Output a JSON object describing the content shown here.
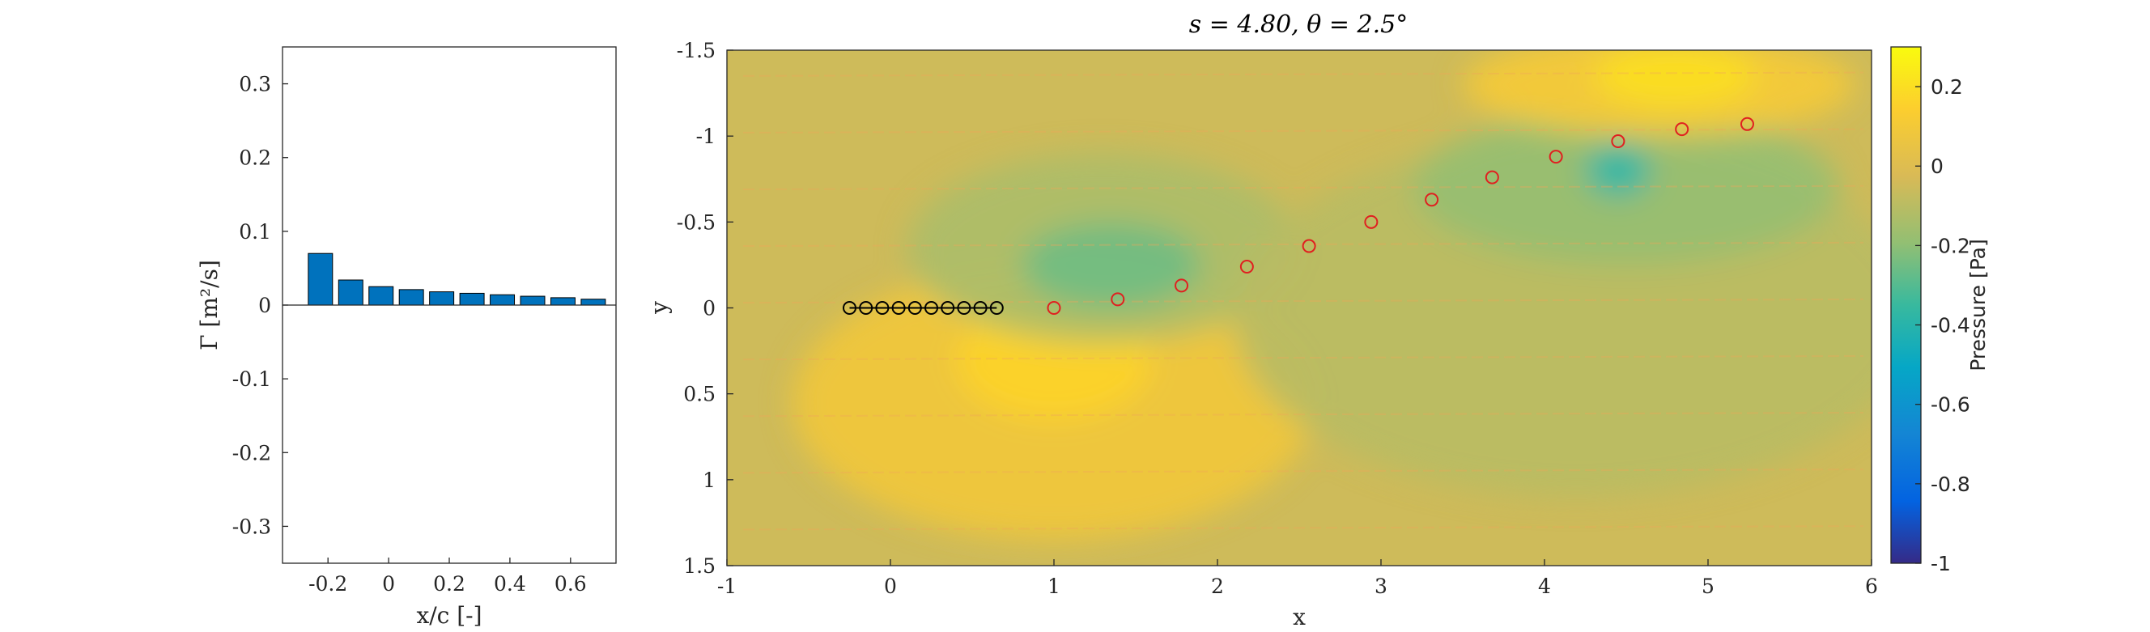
{
  "chart_data": [
    {
      "type": "bar",
      "xlabel": "x/c [-]",
      "ylabel": "Γ [m²/s]",
      "xlim": [
        -0.35,
        0.75
      ],
      "ylim": [
        -0.35,
        0.35
      ],
      "xticks": [
        -0.2,
        0,
        0.2,
        0.4,
        0.6
      ],
      "xtick_labels": [
        "-0.2",
        "0",
        "0.2",
        "0.4",
        "0.6"
      ],
      "yticks": [
        0.3,
        0.2,
        0.1,
        0,
        -0.1,
        -0.2,
        -0.3
      ],
      "ytick_labels": [
        "0.3",
        "0.2",
        "0.1",
        "0",
        "-0.1",
        "-0.2",
        "-0.3"
      ],
      "x": [
        -0.225,
        -0.125,
        -0.025,
        0.075,
        0.175,
        0.275,
        0.375,
        0.475,
        0.575,
        0.675
      ],
      "values": [
        0.07,
        0.034,
        0.025,
        0.021,
        0.018,
        0.016,
        0.014,
        0.012,
        0.01,
        0.008
      ],
      "bar_color": "#0072BD"
    },
    {
      "type": "heatmap",
      "title": "s = 4.80, θ = 2.5°",
      "xlabel": "x",
      "ylabel": "y",
      "xlim": [
        -1,
        6
      ],
      "ylim": [
        -1.5,
        1.5
      ],
      "y_reversed": true,
      "xticks": [
        -1,
        0,
        1,
        2,
        3,
        4,
        5,
        6
      ],
      "xtick_labels": [
        "-1",
        "0",
        "1",
        "2",
        "3",
        "4",
        "5",
        "6"
      ],
      "yticks": [
        -1.5,
        -1,
        -0.5,
        0,
        0.5,
        1,
        1.5
      ],
      "ytick_labels": [
        "-1.5",
        "-1",
        "-0.5",
        "0",
        "0.5",
        "1",
        "1.5"
      ],
      "colorbar": {
        "label": "Pressure [Pa]",
        "range": [
          -1,
          0.3
        ],
        "ticks": [
          0.2,
          0,
          -0.2,
          -0.4,
          -0.6,
          -0.8,
          -1
        ],
        "tick_labels": [
          "0.2",
          "0",
          "-0.2",
          "-0.4",
          "-0.6",
          "-0.8",
          "-1"
        ],
        "colormap": "parula"
      },
      "background_level": -0.05,
      "regions": [
        {
          "cx": 1.0,
          "cy": 0.55,
          "rx": 1.6,
          "ry": 0.8,
          "level": 0.08
        },
        {
          "cx": 1.0,
          "cy": 0.3,
          "rx": 0.6,
          "ry": 0.35,
          "level": 0.16
        },
        {
          "cx": 1.3,
          "cy": -0.35,
          "rx": 1.2,
          "ry": 0.55,
          "level": -0.13
        },
        {
          "cx": 1.35,
          "cy": -0.25,
          "rx": 0.55,
          "ry": 0.25,
          "level": -0.25
        },
        {
          "cx": 4.2,
          "cy": 0.05,
          "rx": 2.1,
          "ry": 1.05,
          "level": -0.1
        },
        {
          "cx": 4.5,
          "cy": -0.7,
          "rx": 1.3,
          "ry": 0.45,
          "level": -0.18
        },
        {
          "cx": 4.45,
          "cy": -0.8,
          "rx": 0.2,
          "ry": 0.15,
          "level": -0.38
        },
        {
          "cx": 4.7,
          "cy": -1.3,
          "rx": 1.2,
          "ry": 0.3,
          "level": 0.1
        },
        {
          "cx": 4.8,
          "cy": -1.35,
          "rx": 0.5,
          "ry": 0.18,
          "level": 0.2
        }
      ],
      "series": [
        {
          "name": "",
          "marker": "o",
          "color": "#000000",
          "x": [
            -0.25,
            -0.15,
            -0.05,
            0.05,
            0.15,
            0.25,
            0.35,
            0.45,
            0.55,
            0.65
          ],
          "y": [
            0,
            0,
            0,
            0,
            0,
            0,
            0,
            0,
            0,
            0
          ]
        },
        {
          "name": "",
          "marker": "o",
          "color": "#e02020",
          "x": [
            1.0,
            1.39,
            1.78,
            2.18,
            2.56,
            2.94,
            3.31,
            3.68,
            4.07,
            4.45,
            4.84,
            5.24
          ],
          "y": [
            0.0,
            -0.05,
            -0.13,
            -0.24,
            -0.36,
            -0.5,
            -0.63,
            -0.76,
            -0.88,
            -0.97,
            -1.04,
            -1.07
          ]
        }
      ]
    }
  ]
}
